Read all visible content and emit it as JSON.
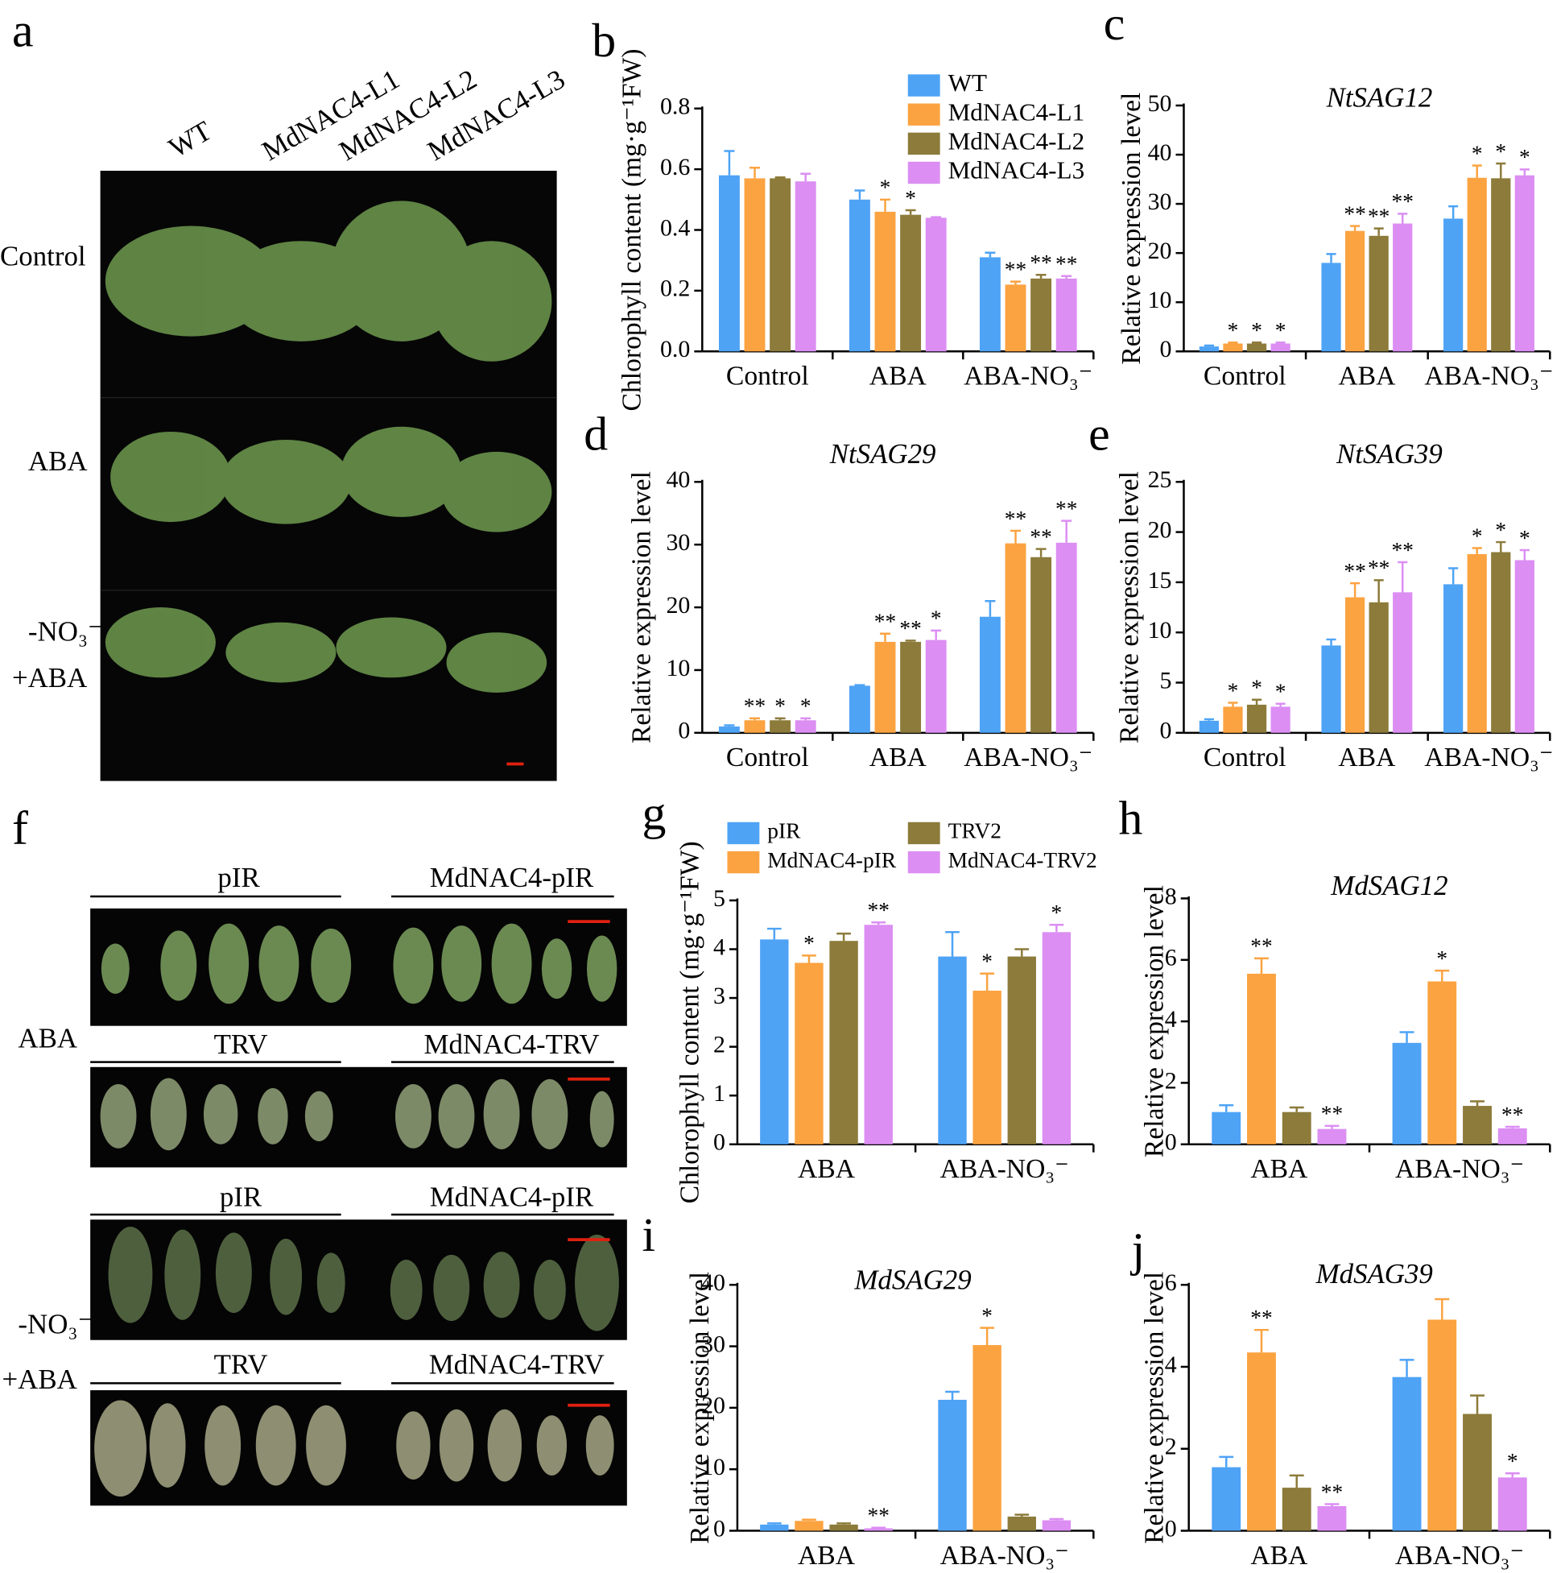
{
  "chart_data": [
    {
      "type": "bar",
      "panel": "b",
      "ylabel": "Chlorophyll  content (mg·g⁻¹FW)",
      "categories": [
        "Control",
        "ABA",
        "ABA-NO₃⁻"
      ],
      "series": [
        {
          "name": "WT",
          "color": "#4ea3f5",
          "values": [
            0.58,
            0.5,
            0.31
          ],
          "errors": [
            0.08,
            0.03,
            0.015
          ],
          "significance": [
            null,
            null,
            null
          ]
        },
        {
          "name": "MdNAC4-L1",
          "color": "#fba341",
          "values": [
            0.57,
            0.46,
            0.22
          ],
          "errors": [
            0.035,
            0.04,
            0.01
          ],
          "significance": [
            null,
            "*",
            "**"
          ]
        },
        {
          "name": "MdNAC4-L2",
          "color": "#8c7b3a",
          "values": [
            0.57,
            0.45,
            0.24
          ],
          "errors": [
            0.003,
            0.015,
            0.012
          ],
          "significance": [
            null,
            "*",
            "**"
          ]
        },
        {
          "name": "MdNAC4-L3",
          "color": "#dc8ef3",
          "values": [
            0.56,
            0.44,
            0.24
          ],
          "errors": [
            0.025,
            0.002,
            0.008
          ],
          "significance": [
            null,
            null,
            "**"
          ]
        }
      ],
      "ylim": [
        0,
        0.8
      ],
      "yticks": [
        {
          "value": 0,
          "label": "0.0"
        },
        0.2,
        0.4,
        0.6,
        0.8
      ],
      "legend_columns": 1
    },
    {
      "type": "bar",
      "panel": "c",
      "title": "NtSAG12",
      "ylabel": "Relative expression level",
      "categories": [
        "Control",
        "ABA",
        "ABA-NO₃⁻"
      ],
      "series": [
        {
          "color": "#4ea3f5",
          "values": [
            1,
            18,
            27
          ],
          "errors": [
            0.2,
            1.8,
            2.5
          ],
          "significance": [
            null,
            null,
            null
          ]
        },
        {
          "color": "#fba341",
          "values": [
            1.6,
            24.5,
            35.3
          ],
          "errors": [
            0.2,
            1,
            2.5
          ],
          "significance": [
            "*",
            "**",
            "*"
          ]
        },
        {
          "color": "#8c7b3a",
          "values": [
            1.6,
            23.5,
            35.2
          ],
          "errors": [
            0.2,
            1.5,
            3
          ],
          "significance": [
            "*",
            "**",
            "*"
          ]
        },
        {
          "color": "#dc8ef3",
          "values": [
            1.6,
            26,
            35.8
          ],
          "errors": [
            0.2,
            2,
            1.2
          ],
          "significance": [
            "*",
            "**",
            "*"
          ]
        }
      ],
      "ylim": [
        0,
        50
      ],
      "yticks": [
        0,
        10,
        20,
        30,
        40,
        50
      ]
    },
    {
      "type": "bar",
      "panel": "d",
      "title": "NtSAG29",
      "ylabel": "Relative expression level",
      "categories": [
        "Control",
        "ABA",
        "ABA-NO₃⁻"
      ],
      "series": [
        {
          "color": "#4ea3f5",
          "values": [
            1,
            7.5,
            18.5
          ],
          "errors": [
            0.2,
            0.1,
            2.5
          ],
          "significance": [
            null,
            null,
            null
          ]
        },
        {
          "color": "#fba341",
          "values": [
            2,
            14.5,
            30.2
          ],
          "errors": [
            0.3,
            1.3,
            2
          ],
          "significance": [
            "**",
            "**",
            "**"
          ]
        },
        {
          "color": "#8c7b3a",
          "values": [
            2,
            14.5,
            28
          ],
          "errors": [
            0.3,
            0.2,
            1.3
          ],
          "significance": [
            "*",
            "**",
            "**"
          ]
        },
        {
          "color": "#dc8ef3",
          "values": [
            2,
            14.8,
            30.3
          ],
          "errors": [
            0.3,
            1.5,
            3.5
          ],
          "significance": [
            "*",
            "*",
            "**"
          ]
        }
      ],
      "ylim": [
        0,
        40
      ],
      "yticks": [
        0,
        10,
        20,
        30,
        40
      ]
    },
    {
      "type": "bar",
      "panel": "e",
      "title": "NtSAG39",
      "ylabel": "Relative expression level",
      "categories": [
        "Control",
        "ABA",
        "ABA-NO₃⁻"
      ],
      "series": [
        {
          "color": "#4ea3f5",
          "values": [
            1.2,
            8.7,
            14.8
          ],
          "errors": [
            0.15,
            0.6,
            1.6
          ],
          "significance": [
            null,
            null,
            null
          ]
        },
        {
          "color": "#fba341",
          "values": [
            2.6,
            13.5,
            17.8
          ],
          "errors": [
            0.4,
            1.4,
            0.6
          ],
          "significance": [
            "*",
            "**",
            "*"
          ]
        },
        {
          "color": "#8c7b3a",
          "values": [
            2.8,
            13,
            18
          ],
          "errors": [
            0.5,
            2.2,
            1
          ],
          "significance": [
            "*",
            "**",
            "*"
          ]
        },
        {
          "color": "#dc8ef3",
          "values": [
            2.6,
            14,
            17.2
          ],
          "errors": [
            0.3,
            3,
            1
          ],
          "significance": [
            "*",
            "**",
            "*"
          ]
        }
      ],
      "ylim": [
        0,
        25
      ],
      "yticks": [
        0,
        5,
        10,
        15,
        20,
        25
      ]
    },
    {
      "type": "bar",
      "panel": "g",
      "ylabel": "Chlorophyll  content (mg·g⁻¹FW)",
      "categories": [
        "ABA",
        "ABA-NO₃⁻"
      ],
      "series": [
        {
          "name": "pIR",
          "color": "#4ea3f5",
          "values": [
            4.2,
            3.85
          ],
          "errors": [
            0.22,
            0.5
          ],
          "significance": [
            null,
            null
          ]
        },
        {
          "name": "MdNAC4-pIR",
          "color": "#fba341",
          "values": [
            3.72,
            3.15
          ],
          "errors": [
            0.15,
            0.35
          ],
          "significance": [
            "*",
            "*"
          ]
        },
        {
          "name": "TRV2",
          "color": "#8c7b3a",
          "values": [
            4.17,
            3.85
          ],
          "errors": [
            0.15,
            0.15
          ],
          "significance": [
            null,
            null
          ]
        },
        {
          "name": "MdNAC4-TRV2",
          "color": "#dc8ef3",
          "values": [
            4.5,
            4.35
          ],
          "errors": [
            0.05,
            0.15
          ],
          "significance": [
            "**",
            "*"
          ]
        }
      ],
      "ylim": [
        0,
        5
      ],
      "yticks": [
        0,
        1,
        2,
        3,
        4,
        5
      ],
      "legend_columns": 2
    },
    {
      "type": "bar",
      "panel": "h",
      "title": "MdSAG12",
      "ylabel": "Relative expression level",
      "categories": [
        "ABA",
        "ABA-NO₃⁻"
      ],
      "series": [
        {
          "color": "#4ea3f5",
          "values": [
            1.05,
            3.3
          ],
          "errors": [
            0.22,
            0.35
          ],
          "significance": [
            null,
            null
          ]
        },
        {
          "color": "#fba341",
          "values": [
            5.55,
            5.3
          ],
          "errors": [
            0.5,
            0.35
          ],
          "significance": [
            "**",
            "*"
          ]
        },
        {
          "color": "#8c7b3a",
          "values": [
            1.05,
            1.25
          ],
          "errors": [
            0.15,
            0.15
          ],
          "significance": [
            null,
            null
          ]
        },
        {
          "color": "#dc8ef3",
          "values": [
            0.5,
            0.52
          ],
          "errors": [
            0.1,
            0.05
          ],
          "significance": [
            "**",
            "**"
          ]
        }
      ],
      "ylim": [
        0,
        8
      ],
      "yticks": [
        0,
        2,
        4,
        6,
        8
      ]
    },
    {
      "type": "bar",
      "panel": "i",
      "title": "MdSAG29",
      "ylabel": "Relative expression level",
      "categories": [
        "ABA",
        "ABA-NO₃⁻"
      ],
      "series": [
        {
          "color": "#4ea3f5",
          "values": [
            1,
            21.3
          ],
          "errors": [
            0.2,
            1.3
          ],
          "significance": [
            null,
            null
          ]
        },
        {
          "color": "#fba341",
          "values": [
            1.6,
            30.2
          ],
          "errors": [
            0.2,
            2.8
          ],
          "significance": [
            null,
            "*"
          ]
        },
        {
          "color": "#8c7b3a",
          "values": [
            1,
            2.3
          ],
          "errors": [
            0.2,
            0.3
          ],
          "significance": [
            null,
            null
          ]
        },
        {
          "color": "#dc8ef3",
          "values": [
            0.4,
            1.7
          ],
          "errors": [
            0.1,
            0.2
          ],
          "significance": [
            "**",
            null
          ]
        }
      ],
      "ylim": [
        0,
        40
      ],
      "yticks": [
        0,
        10,
        20,
        30,
        40
      ]
    },
    {
      "type": "bar",
      "panel": "j",
      "title": "MdSAG39",
      "ylabel": "Relative expression level",
      "categories": [
        "ABA",
        "ABA-NO₃⁻"
      ],
      "series": [
        {
          "color": "#4ea3f5",
          "values": [
            1.55,
            3.75
          ],
          "errors": [
            0.25,
            0.42
          ],
          "significance": [
            null,
            null
          ]
        },
        {
          "color": "#fba341",
          "values": [
            4.35,
            5.15
          ],
          "errors": [
            0.55,
            0.5
          ],
          "significance": [
            "**",
            null
          ]
        },
        {
          "color": "#8c7b3a",
          "values": [
            1.05,
            2.85
          ],
          "errors": [
            0.3,
            0.45
          ],
          "significance": [
            null,
            null
          ]
        },
        {
          "color": "#dc8ef3",
          "values": [
            0.6,
            1.3
          ],
          "errors": [
            0.05,
            0.1
          ],
          "significance": [
            "**",
            "*"
          ]
        }
      ],
      "ylim": [
        0,
        6
      ],
      "yticks": [
        0,
        2,
        4,
        6
      ]
    }
  ],
  "photo_a": {
    "panel": "a",
    "columns": [
      "WT",
      "MdNAC4-L1",
      "MdNAC4-L2",
      "MdNAC4-L3"
    ],
    "rows": [
      "Control",
      "ABA",
      "-NO₃⁻",
      "+ABA"
    ]
  },
  "photo_f": {
    "panel": "f",
    "groups": [
      [
        "pIR",
        "MdNAC4-pIR"
      ],
      [
        "TRV",
        "MdNAC4-TRV"
      ],
      [
        "pIR",
        "MdNAC4-pIR"
      ],
      [
        "TRV",
        "MdNAC4-TRV"
      ]
    ],
    "rows": [
      "ABA",
      "-NO₃⁻",
      "+ABA"
    ]
  }
}
